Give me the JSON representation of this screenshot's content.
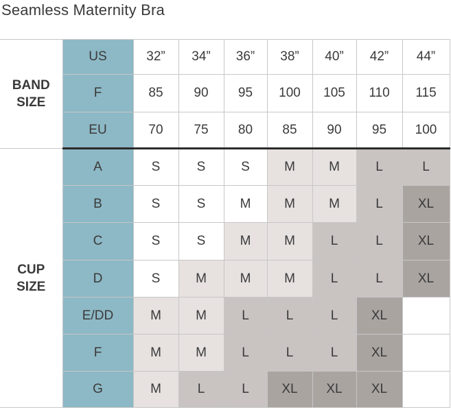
{
  "title": "Seamless Maternity Bra",
  "band": {
    "group_label": "BAND SIZE",
    "rows": [
      {
        "label": "US",
        "values": [
          "32”",
          "34”",
          "36”",
          "38”",
          "40”",
          "42”",
          "44”"
        ]
      },
      {
        "label": "F",
        "values": [
          "85",
          "90",
          "95",
          "100",
          "105",
          "110",
          "115"
        ]
      },
      {
        "label": "EU",
        "values": [
          "70",
          "75",
          "80",
          "85",
          "90",
          "95",
          "100"
        ]
      }
    ]
  },
  "cup": {
    "group_label": "CUP SIZE",
    "rows": [
      {
        "label": "A",
        "values": [
          "S",
          "S",
          "S",
          "M",
          "M",
          "L",
          "L"
        ]
      },
      {
        "label": "B",
        "values": [
          "S",
          "S",
          "M",
          "M",
          "M",
          "L",
          "XL"
        ]
      },
      {
        "label": "C",
        "values": [
          "S",
          "S",
          "M",
          "M",
          "L",
          "L",
          "XL"
        ]
      },
      {
        "label": "D",
        "values": [
          "S",
          "M",
          "M",
          "M",
          "L",
          "L",
          "XL"
        ]
      },
      {
        "label": "E/DD",
        "values": [
          "M",
          "M",
          "L",
          "L",
          "L",
          "XL",
          ""
        ]
      },
      {
        "label": "F",
        "values": [
          "M",
          "M",
          "L",
          "L",
          "L",
          "XL",
          ""
        ]
      },
      {
        "label": "G",
        "values": [
          "M",
          "L",
          "L",
          "XL",
          "XL",
          "XL",
          ""
        ]
      }
    ]
  },
  "colors": {
    "header_column": "#8db8c5",
    "size_S": "#ffffff",
    "size_M": "#e7e1e0",
    "size_L": "#c9c3c1",
    "size_XL": "#aaa4a1"
  }
}
